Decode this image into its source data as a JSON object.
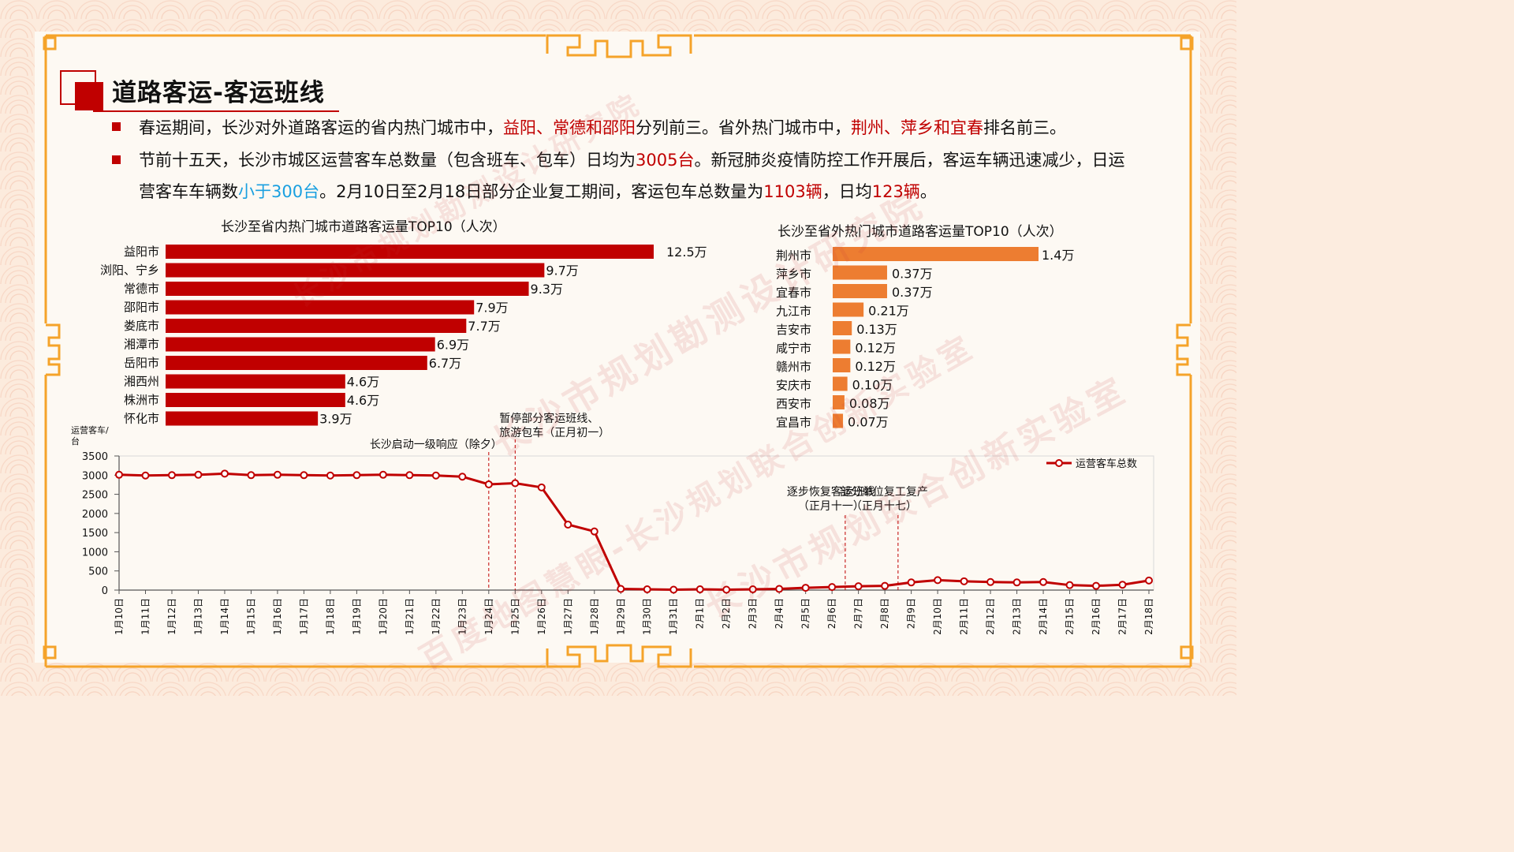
{
  "title": "道路客运-客运班线",
  "bullets": {
    "b1": {
      "t1": "春运期间，长沙对外道路客运的省内热门城市中，",
      "r1": "益阳、常德和邵阳",
      "t2": "分列前三。省外热门城市中，",
      "r2": "荆州、萍乡和宜春",
      "t3": "排名前三。"
    },
    "b2": {
      "t1": "节前十五天，长沙市城区运营客车总数量（包含班车、包车）日均为",
      "r1": "3005台",
      "t2": "。新冠肺炎疫情防控工作开展后，客运车辆迅速减",
      "t3": "少，日运营客车车辆数",
      "blue1": "小于300台",
      "t4": "。2月10日至2月18日部分企业复工期间，客运包车总数量为",
      "r2": "1103辆",
      "t5": "，日均",
      "r3": "123辆",
      "t6": "。"
    }
  },
  "watermarks": [
    "长沙市规划勘测设计研究院",
    "长沙市规划勘测设计研究院",
    "长沙市规划联合创新实验室",
    "百度地图慧眼-长沙规划联合创新实验室"
  ],
  "colors": {
    "red": "#c00000",
    "orange": "#ed7d31",
    "line": "#c00000",
    "blue": "#1aa0e0"
  },
  "chart_data": [
    {
      "type": "bar",
      "title": "长沙至省内热门城市道路客运量TOP10（人次）",
      "categories": [
        "益阳市",
        "浏阳、宁乡",
        "常德市",
        "邵阳市",
        "娄底市",
        "湘潭市",
        "岳阳市",
        "湘西州",
        "株洲市",
        "怀化市"
      ],
      "values": [
        12.5,
        9.7,
        9.3,
        7.9,
        7.7,
        6.9,
        6.7,
        4.6,
        4.6,
        3.9
      ],
      "labels": [
        "12.5万",
        "9.7万",
        "9.3万",
        "7.9万",
        "7.7万",
        "6.9万",
        "6.7万",
        "4.6万",
        "4.6万",
        "3.9万"
      ],
      "orientation": "horizontal",
      "color": "#c00000"
    },
    {
      "type": "bar",
      "title": "长沙至省外热门城市道路客运量TOP10（人次）",
      "categories": [
        "荆州市",
        "萍乡市",
        "宜春市",
        "九江市",
        "吉安市",
        "咸宁市",
        "赣州市",
        "安庆市",
        "西安市",
        "宜昌市"
      ],
      "values": [
        1.4,
        0.37,
        0.37,
        0.21,
        0.13,
        0.12,
        0.12,
        0.1,
        0.08,
        0.07
      ],
      "labels": [
        "1.4万",
        "0.37万",
        "0.37万",
        "0.21万",
        "0.13万",
        "0.12万",
        "0.12万",
        "0.10万",
        "0.08万",
        "0.07万"
      ],
      "orientation": "horizontal",
      "color": "#ed7d31"
    },
    {
      "type": "line",
      "ylabel": "运营客车/台",
      "ylim": [
        0,
        3500
      ],
      "yticks": [
        "0",
        "500",
        "1000",
        "1500",
        "2000",
        "2500",
        "3000",
        "3500"
      ],
      "x": [
        "1月10日",
        "1月11日",
        "1月12日",
        "1月13日",
        "1月14日",
        "1月15日",
        "1月16日",
        "1月17日",
        "1月18日",
        "1月19日",
        "1月20日",
        "1月21日",
        "1月22日",
        "1月23日",
        "1月24日",
        "1月25日",
        "1月26日",
        "1月27日",
        "1月28日",
        "1月29日",
        "1月30日",
        "1月31日",
        "2月1日",
        "2月2日",
        "2月3日",
        "2月4日",
        "2月5日",
        "2月6日",
        "2月7日",
        "2月8日",
        "2月9日",
        "2月10日",
        "2月11日",
        "2月12日",
        "2月13日",
        "2月14日",
        "2月15日",
        "2月16日",
        "2月17日",
        "2月18日"
      ],
      "series": [
        {
          "name": "运营客车总数",
          "values": [
            3010,
            2990,
            3000,
            3010,
            3040,
            3000,
            3010,
            3000,
            2990,
            3000,
            3010,
            3000,
            2990,
            2960,
            2760,
            2790,
            2680,
            1710,
            1530,
            30,
            20,
            10,
            20,
            10,
            20,
            30,
            60,
            80,
            100,
            110,
            200,
            260,
            230,
            210,
            200,
            210,
            130,
            110,
            140,
            250
          ]
        }
      ],
      "legend": "top-right",
      "annotations": [
        {
          "x": "1月24日",
          "text": "长沙启动一级响应（除夕）"
        },
        {
          "x": "1月25日",
          "text": "暂停部分客运班线、",
          "text2": "旅游包车（正月初一）"
        },
        {
          "x": "2月6日",
          "text": "逐步恢复客运班线",
          "text2": "（正月十一）"
        },
        {
          "x": "2月8日",
          "text": "部分单位复工复产",
          "text2": "（正月十七）"
        }
      ]
    }
  ]
}
